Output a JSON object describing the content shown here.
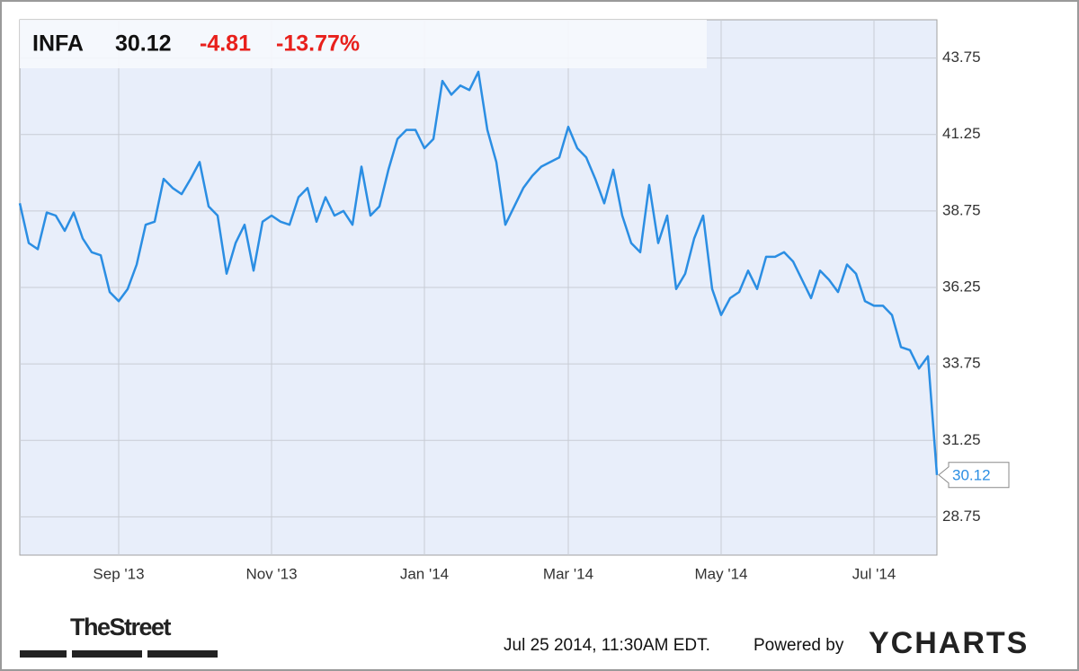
{
  "chart_data": {
    "type": "line",
    "header": {
      "symbol": "INFA",
      "price": "30.12",
      "change": "-4.81",
      "change_percent": "-13.77%"
    },
    "categories": [
      null,
      null,
      null,
      null,
      null,
      null,
      null,
      null,
      null,
      null,
      null,
      "Sep '13",
      null,
      null,
      null,
      null,
      null,
      null,
      null,
      null,
      null,
      null,
      null,
      null,
      null,
      null,
      null,
      null,
      "Nov '13",
      null,
      null,
      null,
      null,
      null,
      null,
      null,
      null,
      null,
      null,
      null,
      null,
      null,
      null,
      null,
      null,
      "Jan '14",
      null,
      null,
      null,
      null,
      null,
      null,
      null,
      null,
      null,
      null,
      null,
      null,
      null,
      null,
      null,
      "Mar '14",
      null,
      null,
      null,
      null,
      null,
      null,
      null,
      null,
      null,
      null,
      null,
      null,
      null,
      null,
      null,
      null,
      "May '14",
      null,
      null,
      null,
      null,
      null,
      null,
      null,
      null,
      null,
      null,
      null,
      null,
      null,
      null,
      null,
      null,
      "Jul '14",
      null,
      null,
      null,
      null,
      null,
      null,
      null
    ],
    "series": [
      {
        "name": "INFA",
        "color": "#2b8ee3",
        "values": [
          39.0,
          37.7,
          37.5,
          38.7,
          38.6,
          38.1,
          38.7,
          37.85,
          37.4,
          37.3,
          36.1,
          35.8,
          36.2,
          37.0,
          38.3,
          38.4,
          39.8,
          39.5,
          39.3,
          39.8,
          40.35,
          38.9,
          38.6,
          36.7,
          37.7,
          38.3,
          36.8,
          38.4,
          38.6,
          38.4,
          38.3,
          39.2,
          39.5,
          38.4,
          39.2,
          38.6,
          38.75,
          38.3,
          40.2,
          38.6,
          38.9,
          40.1,
          41.1,
          41.4,
          41.4,
          40.8,
          41.1,
          43.0,
          42.55,
          42.85,
          42.7,
          43.3,
          41.4,
          40.35,
          38.3,
          38.9,
          39.5,
          39.9,
          40.2,
          40.35,
          40.5,
          41.5,
          40.8,
          40.5,
          39.8,
          39.0,
          40.1,
          38.6,
          37.7,
          37.4,
          39.6,
          37.7,
          38.6,
          36.2,
          36.7,
          37.85,
          38.6,
          36.2,
          35.35,
          35.9,
          36.1,
          36.8,
          36.2,
          37.25,
          37.25,
          37.4,
          37.1,
          36.5,
          35.9,
          36.8,
          36.5,
          36.1,
          37.0,
          36.7,
          35.8,
          35.65,
          35.65,
          35.35,
          34.3,
          34.2,
          33.6,
          34.0,
          30.12
        ]
      }
    ],
    "ylim": [
      27.5,
      45
    ],
    "yticks": [
      28.75,
      31.25,
      33.75,
      36.25,
      38.75,
      41.25,
      43.75
    ],
    "grid": true,
    "footer": {
      "source_logo": "TheStreet",
      "timestamp": "Jul 25 2014, 11:30AM EDT.",
      "powered_by": "Powered by",
      "provider": "YCHARTS"
    }
  }
}
